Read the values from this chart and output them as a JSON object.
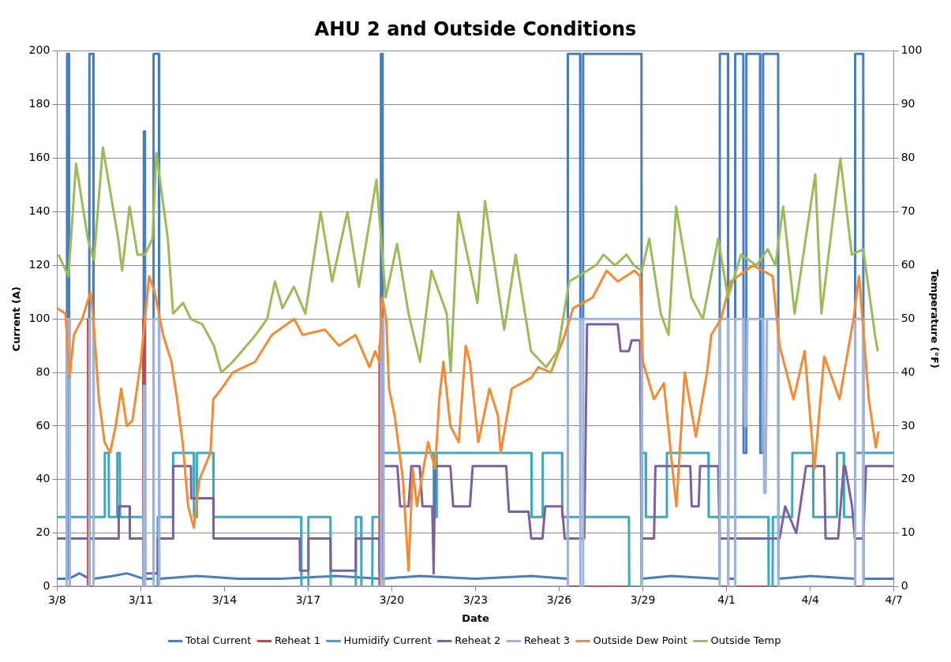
{
  "chart_data": {
    "type": "line",
    "title": "AHU 2 and Outside Conditions",
    "xlabel": "Date",
    "ylabel": "Current (A)",
    "y2label": "Temperature (°F)",
    "xlim": [
      "--03-08",
      "--04-07"
    ],
    "xticks": [
      {
        "value": "--03-08",
        "label": "3/8"
      },
      {
        "value": "--03-11",
        "label": "3/11"
      },
      {
        "value": "--03-14",
        "label": "3/14"
      },
      {
        "value": "--03-17",
        "label": "3/17"
      },
      {
        "value": "--03-20",
        "label": "3/20"
      },
      {
        "value": "--03-23",
        "label": "3/23"
      },
      {
        "value": "--03-26",
        "label": "3/26"
      },
      {
        "value": "--03-29",
        "label": "3/29"
      },
      {
        "value": "--04-01",
        "label": "4/1"
      },
      {
        "value": "--04-04",
        "label": "4/4"
      },
      {
        "value": "--04-07",
        "label": "4/7"
      }
    ],
    "ylim": [
      0,
      200
    ],
    "yticks": [
      0,
      20,
      40,
      60,
      80,
      100,
      120,
      140,
      160,
      180,
      200
    ],
    "y2lim": [
      0,
      100
    ],
    "y2ticks": [
      0,
      10,
      20,
      30,
      40,
      50,
      60,
      70,
      80,
      90,
      100
    ],
    "grid": "y",
    "legend": "bottom",
    "marker": "none",
    "series": [
      {
        "name": "Total Current",
        "color": "#4a7ebb",
        "x": [
          "--03-08T00:00",
          "--03-08T08:24",
          "--03-08T08:38",
          "--03-08T10:05",
          "--03-08T10:19",
          "--03-08T19:12",
          "--03-09T03:36",
          "--03-09T03:50",
          "--03-09T07:12",
          "--03-09T07:26",
          "--03-10T00:00",
          "--03-10T12:00",
          "--03-11T02:24",
          "--03-11T02:38",
          "--03-11T03:36",
          "--03-11T03:50",
          "--03-11T10:48",
          "--03-11T11:02",
          "--03-11T15:36",
          "--03-11T15:50",
          "--03-13T00:00",
          "--03-14T12:00",
          "--03-16T00:00",
          "--03-18T00:00",
          "--03-19T14:24",
          "--03-19T14:38",
          "--03-19T15:50",
          "--03-19T16:05",
          "--03-21T00:00",
          "--03-23T00:00",
          "--03-25T00:00",
          "--03-26T07:12",
          "--03-26T07:26",
          "--03-26T18:00",
          "--03-26T18:14",
          "--03-26T20:24",
          "--03-26T20:38",
          "--03-28T22:48",
          "--03-28T23:02",
          "--03-30T00:00",
          "--03-31T18:00",
          "--03-31T18:14",
          "--04-01T01:12",
          "--04-01T01:26",
          "--04-01T07:12",
          "--04-01T07:26",
          "--04-01T14:24",
          "--04-01T14:38",
          "--04-01T16:48",
          "--04-01T17:02",
          "--04-02T04:48",
          "--04-02T05:02",
          "--04-02T07:12",
          "--04-02T07:26",
          "--04-02T20:24",
          "--04-02T20:38",
          "--04-04T00:00",
          "--04-05T14:24",
          "--04-05T14:38",
          "--04-05T21:36",
          "--04-05T21:50",
          "--04-07T00:00"
        ],
        "values": [
          3,
          3,
          199,
          199,
          3,
          5,
          3,
          199,
          199,
          3,
          4,
          5,
          3,
          170,
          170,
          3,
          3,
          199,
          199,
          3,
          4,
          3,
          3,
          4,
          3,
          199,
          199,
          3,
          4,
          3,
          4,
          3,
          199,
          199,
          100,
          100,
          199,
          199,
          3,
          4,
          3,
          199,
          199,
          3,
          3,
          199,
          199,
          50,
          50,
          199,
          199,
          50,
          50,
          199,
          199,
          3,
          4,
          3,
          199,
          199,
          3,
          3
        ]
      },
      {
        "name": "Reheat 1",
        "color": "#be4b48",
        "x": [
          "--03-08T00:00",
          "--03-09T02:24",
          "--03-09T02:38",
          "--03-09T03:22",
          "--03-09T03:36",
          "--03-11T01:55",
          "--03-11T02:10",
          "--03-11T02:53",
          "--03-11T03:07",
          "--03-19T13:12",
          "--03-19T13:26",
          "--03-19T14:24",
          "--03-19T14:38",
          "--04-07T00:00"
        ],
        "values": [
          0,
          0,
          100,
          100,
          0,
          0,
          100,
          100,
          0,
          0,
          90,
          90,
          0,
          0
        ]
      },
      {
        "name": "Humidify Current",
        "color": "#3fa8bd",
        "x": [
          "--03-08T00:00",
          "--03-09T16:48",
          "--03-09T17:02",
          "--03-09T20:24",
          "--03-09T20:38",
          "--03-10T03:36",
          "--03-10T03:50",
          "--03-10T06:00",
          "--03-10T06:14",
          "--03-11T02:24",
          "--03-11T02:38",
          "--03-11T14:24",
          "--03-11T14:38",
          "--03-12T03:36",
          "--03-12T03:50",
          "--03-12T21:36",
          "--03-12T21:50",
          "--03-13T00:00",
          "--03-13T00:14",
          "--03-13T14:24",
          "--03-13T14:38",
          "--03-16T18:00",
          "--03-16T18:14",
          "--03-17T00:00",
          "--03-17T00:14",
          "--03-17T19:12",
          "--03-17T19:26",
          "--03-18T16:48",
          "--03-18T17:02",
          "--03-18T21:36",
          "--03-18T21:50",
          "--03-19T07:12",
          "--03-19T07:26",
          "--03-19T14:24",
          "--03-19T14:38",
          "--03-21T12:00",
          "--03-21T12:14",
          "--03-21T14:24",
          "--03-21T14:38",
          "--03-25T00:00",
          "--03-25T00:14",
          "--03-25T09:36",
          "--03-25T09:50",
          "--03-26T02:24",
          "--03-26T02:38",
          "--03-28T12:00",
          "--03-28T12:14",
          "--03-28T22:48",
          "--03-28T23:02",
          "--03-29T02:24",
          "--03-29T02:38",
          "--03-29T20:24",
          "--03-29T20:38",
          "--03-31T08:24",
          "--03-31T08:38",
          "--04-02T12:00",
          "--04-02T12:14",
          "--04-02T15:36",
          "--04-02T15:50",
          "--04-03T08:24",
          "--04-03T08:38",
          "--04-04T02:24",
          "--04-04T02:38",
          "--04-04T22:48",
          "--04-04T23:02",
          "--04-05T04:48",
          "--04-05T05:02",
          "--04-05T14:24",
          "--04-05T14:38",
          "--04-07T00:00"
        ],
        "values": [
          26,
          26,
          50,
          50,
          26,
          26,
          50,
          50,
          26,
          26,
          0,
          0,
          26,
          26,
          50,
          50,
          26,
          26,
          50,
          50,
          26,
          26,
          0,
          0,
          26,
          26,
          0,
          0,
          26,
          26,
          0,
          0,
          26,
          26,
          50,
          50,
          26,
          26,
          50,
          50,
          26,
          26,
          50,
          50,
          26,
          26,
          0,
          0,
          50,
          50,
          26,
          26,
          50,
          50,
          26,
          26,
          0,
          0,
          26,
          26,
          50,
          50,
          26,
          26,
          50,
          50,
          26,
          26,
          50,
          50
        ]
      },
      {
        "name": "Reheat 2",
        "color": "#7d60a0",
        "x": [
          "--03-08T00:00",
          "--03-10T04:48",
          "--03-10T05:02",
          "--03-10T14:24",
          "--03-10T14:38",
          "--03-11T02:24",
          "--03-11T02:38",
          "--03-11T14:24",
          "--03-11T14:38",
          "--03-12T03:36",
          "--03-12T03:50",
          "--03-12T19:12",
          "--03-12T19:26",
          "--03-13T14:24",
          "--03-13T14:38",
          "--03-16T16:48",
          "--03-16T17:02",
          "--03-17T00:00",
          "--03-17T00:14",
          "--03-17T19:12",
          "--03-17T19:26",
          "--03-18T16:48",
          "--03-18T17:02",
          "--03-19T13:12",
          "--03-19T13:26",
          "--03-19T15:36",
          "--03-19T15:50",
          "--03-20T04:48",
          "--03-20T07:12",
          "--03-20T14:24",
          "--03-20T16:48",
          "--03-21T00:00",
          "--03-21T02:24",
          "--03-21T10:48",
          "--03-21T12:00",
          "--03-21T13:12",
          "--03-22T02:24",
          "--03-22T04:48",
          "--03-22T19:12",
          "--03-22T21:36",
          "--03-24T02:24",
          "--03-24T04:48",
          "--03-24T21:36",
          "--03-25T00:00",
          "--03-25T09:36",
          "--03-25T12:00",
          "--03-26T02:24",
          "--03-26T04:48",
          "--03-26T07:12",
          "--03-26T21:36",
          "--03-27T00:00",
          "--03-28T02:24",
          "--03-28T04:48",
          "--03-28T12:00",
          "--03-28T14:24",
          "--03-28T21:36",
          "--03-28T22:48",
          "--03-29T09:36",
          "--03-29T10:48",
          "--03-29T20:24",
          "--03-30T16:48",
          "--03-30T18:00",
          "--03-31T00:00",
          "--03-31T01:12",
          "--03-31T16:48",
          "--03-31T18:00",
          "--04-01T00:00",
          "--04-02T21:36",
          "--04-03T02:24",
          "--04-03T12:00",
          "--04-03T20:24",
          "--04-04T12:00",
          "--04-04T13:12",
          "--04-05T00:00",
          "--04-05T04:48",
          "--04-05T06:00",
          "--04-05T12:00",
          "--04-05T14:24",
          "--04-05T21:36",
          "--04-06T00:00",
          "--04-06T02:24",
          "--04-07T00:00"
        ],
        "values": [
          18,
          18,
          30,
          30,
          18,
          18,
          5,
          5,
          18,
          18,
          45,
          45,
          33,
          33,
          18,
          18,
          6,
          6,
          18,
          18,
          6,
          6,
          18,
          18,
          6,
          6,
          45,
          45,
          30,
          30,
          45,
          45,
          30,
          30,
          5,
          45,
          45,
          30,
          30,
          45,
          45,
          28,
          28,
          18,
          18,
          30,
          30,
          18,
          18,
          18,
          98,
          98,
          88,
          88,
          92,
          92,
          18,
          18,
          45,
          45,
          45,
          30,
          30,
          45,
          45,
          18,
          18,
          18,
          30,
          20,
          45,
          45,
          18,
          18,
          45,
          45,
          30,
          18,
          18,
          45,
          45,
          45
        ]
      },
      {
        "name": "Reheat 3",
        "color": "#9fb3dc",
        "x": [
          "--03-08T00:00",
          "--03-08T08:24",
          "--03-08T08:38",
          "--03-08T10:48",
          "--03-08T11:02",
          "--03-09T03:36",
          "--03-09T03:50",
          "--03-09T07:12",
          "--03-09T07:26",
          "--03-11T02:24",
          "--03-11T02:38",
          "--03-11T03:36",
          "--03-11T03:50",
          "--03-11T10:48",
          "--03-11T11:02",
          "--03-11T15:36",
          "--03-11T15:50",
          "--03-19T14:24",
          "--03-19T14:38",
          "--03-19T16:48",
          "--03-19T17:02",
          "--03-26T07:12",
          "--03-26T07:26",
          "--03-26T18:00",
          "--03-26T18:14",
          "--03-26T20:24",
          "--03-26T20:38",
          "--03-28T22:48",
          "--03-28T23:02",
          "--03-31T18:00",
          "--03-31T18:14",
          "--04-01T01:12",
          "--04-01T01:26",
          "--04-01T07:12",
          "--04-01T07:26",
          "--04-01T14:24",
          "--04-01T15:36",
          "--04-01T16:48",
          "--04-01T18:00",
          "--04-02T07:12",
          "--04-02T08:24",
          "--04-02T09:36",
          "--04-02T10:48",
          "--04-02T20:24",
          "--04-02T20:38",
          "--04-05T14:24",
          "--04-05T14:38",
          "--04-05T21:36",
          "--04-05T21:50",
          "--04-07T00:00"
        ],
        "values": [
          0,
          0,
          100,
          100,
          0,
          0,
          100,
          100,
          0,
          0,
          75,
          75,
          0,
          0,
          100,
          100,
          0,
          0,
          100,
          100,
          0,
          0,
          100,
          100,
          0,
          0,
          100,
          100,
          0,
          0,
          100,
          100,
          0,
          0,
          100,
          100,
          60,
          60,
          100,
          100,
          35,
          35,
          100,
          100,
          0,
          0,
          100,
          100,
          0,
          0
        ]
      },
      {
        "name": "Outside Dew Point",
        "color": "#f38b34",
        "axis": "y2",
        "x": [
          "--03-08T00:00",
          "--03-08T07:12",
          "--03-08T10:48",
          "--03-08T14:24",
          "--03-08T21:36",
          "--03-09T04:48",
          "--03-09T07:12",
          "--03-09T12:00",
          "--03-09T16:48",
          "--03-09T21:36",
          "--03-10T02:24",
          "--03-10T07:12",
          "--03-10T12:00",
          "--03-10T16:48",
          "--03-11T00:00",
          "--03-11T07:12",
          "--03-11T12:00",
          "--03-11T19:12",
          "--03-12T02:24",
          "--03-12T07:12",
          "--03-12T12:00",
          "--03-12T16:48",
          "--03-12T21:36",
          "--03-13T02:24",
          "--03-13T12:00",
          "--03-13T14:24",
          "--03-13T21:36",
          "--03-14T07:12",
          "--03-15T02:24",
          "--03-15T16:48",
          "--03-16T12:00",
          "--03-16T19:12",
          "--03-17T14:24",
          "--03-18T02:24",
          "--03-18T16:48",
          "--03-19T04:48",
          "--03-19T09:36",
          "--03-19T13:12",
          "--03-19T15:36",
          "--03-19T19:12",
          "--03-19T21:36",
          "--03-20T02:24",
          "--03-20T09:36",
          "--03-20T14:24",
          "--03-20T18:00",
          "--03-20T21:36",
          "--03-21T07:12",
          "--03-21T13:12",
          "--03-21T16:48",
          "--03-21T20:24",
          "--03-22T02:24",
          "--03-22T09:36",
          "--03-22T15:36",
          "--03-22T19:12",
          "--03-23T02:24",
          "--03-23T12:00",
          "--03-23T19:12",
          "--03-23T21:36",
          "--03-24T07:12",
          "--03-25T00:00",
          "--03-25T06:00",
          "--03-25T16:48",
          "--03-26T04:48",
          "--03-26T12:00",
          "--03-27T04:48",
          "--03-27T16:48",
          "--03-28T02:24",
          "--03-28T16:48",
          "--03-28T21:36",
          "--03-29T00:00",
          "--03-29T09:36",
          "--03-29T18:00",
          "--03-30T02:24",
          "--03-30T04:48",
          "--03-30T12:00",
          "--03-30T21:36",
          "--03-31T07:12",
          "--03-31T10:48",
          "--03-31T19:12",
          "--04-01T03:36",
          "--04-01T22:48",
          "--04-02T15:36",
          "--04-02T21:36",
          "--04-03T09:36",
          "--04-03T19:12",
          "--04-04T03:36",
          "--04-04T12:00",
          "--04-05T01:12",
          "--04-05T13:12",
          "--04-05T18:00",
          "--04-06T02:24",
          "--04-06T08:24",
          "--04-06T10:48"
        ],
        "values": [
          52,
          51,
          39,
          47,
          50,
          55,
          50,
          35,
          27,
          25,
          30,
          37,
          30,
          31,
          42,
          58,
          55,
          47,
          42,
          35,
          27,
          15,
          11,
          20,
          25,
          35,
          37,
          40,
          42,
          47,
          50,
          47,
          48,
          45,
          47,
          41,
          44,
          42,
          54,
          50,
          37,
          32,
          20,
          3,
          22,
          15,
          27,
          22,
          35,
          42,
          30,
          27,
          45,
          42,
          27,
          37,
          32,
          25,
          37,
          39,
          41,
          40,
          47,
          52,
          54,
          59,
          57,
          59,
          58,
          42,
          35,
          38,
          20,
          15,
          40,
          28,
          40,
          47,
          50,
          57,
          60,
          58,
          45,
          35,
          44,
          22,
          43,
          35,
          50,
          58,
          35,
          26,
          29
        ]
      },
      {
        "name": "Outside Temp",
        "color": "#9bbb59",
        "axis": "y2",
        "x": [
          "--03-08T01:12",
          "--03-08T09:50",
          "--03-08T16:19",
          "--03-09T02:24",
          "--03-09T07:41",
          "--03-09T15:22",
          "--03-10T04:34",
          "--03-10T07:55",
          "--03-10T14:24",
          "--03-10T21:07",
          "--03-11T03:36",
          "--03-11T10:05",
          "--03-11T13:26",
          "--03-11T23:17",
          "--03-12T03:50",
          "--03-12T12:29",
          "--03-12T18:58",
          "--03-13T05:02",
          "--03-13T14:53",
          "--03-13T21:22",
          "--03-14T07:12",
          "--03-15T02:53",
          "--03-15T12:43",
          "--03-15T19:26",
          "--03-16T01:55",
          "--03-16T11:46",
          "--03-16T21:36",
          "--03-17T10:48",
          "--03-17T20:38",
          "--03-18T09:50",
          "--03-18T19:41",
          "--03-19T10:48",
          "--03-19T18:43",
          "--03-20T04:34",
          "--03-20T14:24",
          "--03-21T00:14",
          "--03-21T10:05",
          "--03-21T23:17",
          "--03-22T02:38",
          "--03-22T09:07",
          "--03-23T01:41",
          "--03-23T08:10",
          "--03-24T00:43",
          "--03-24T10:34",
          "--03-24T23:46",
          "--03-25T12:43",
          "--03-25T22:48",
          "--03-26T08:38",
          "--03-27T07:41",
          "--03-27T14:10",
          "--03-28T00:00",
          "--03-28T09:50",
          "--03-28T16:19",
          "--03-28T23:02",
          "--03-29T05:31",
          "--03-29T15:22",
          "--03-29T22:05",
          "--03-30T04:34",
          "--03-30T17:46",
          "--03-31T03:36",
          "--03-31T16:48",
          "--04-01T01:12",
          "--04-01T12:29",
          "--04-02T01:41",
          "--04-02T11:31",
          "--04-02T18:00",
          "--04-03T00:43",
          "--04-03T10:34",
          "--04-04T04:19",
          "--04-04T09:36",
          "--04-05T01:55",
          "--04-05T11:46",
          "--04-05T21:36",
          "--04-06T07:41",
          "--04-06T10:05"
        ],
        "values": [
          62,
          58,
          79,
          65,
          61,
          82,
          65,
          59,
          71,
          62,
          62,
          65,
          81,
          65,
          51,
          53,
          50,
          49,
          45,
          40,
          42,
          47,
          50,
          57,
          52,
          56,
          51,
          70,
          57,
          70,
          56,
          76,
          54,
          64,
          51,
          42,
          59,
          51,
          40,
          70,
          53,
          72,
          48,
          62,
          44,
          41,
          44,
          57,
          60,
          62,
          60,
          62,
          60,
          59,
          65,
          51,
          47,
          71,
          54,
          50,
          65,
          54,
          62,
          60,
          63,
          60,
          71,
          51,
          77,
          51,
          80,
          62,
          63,
          47,
          44
        ]
      }
    ]
  }
}
